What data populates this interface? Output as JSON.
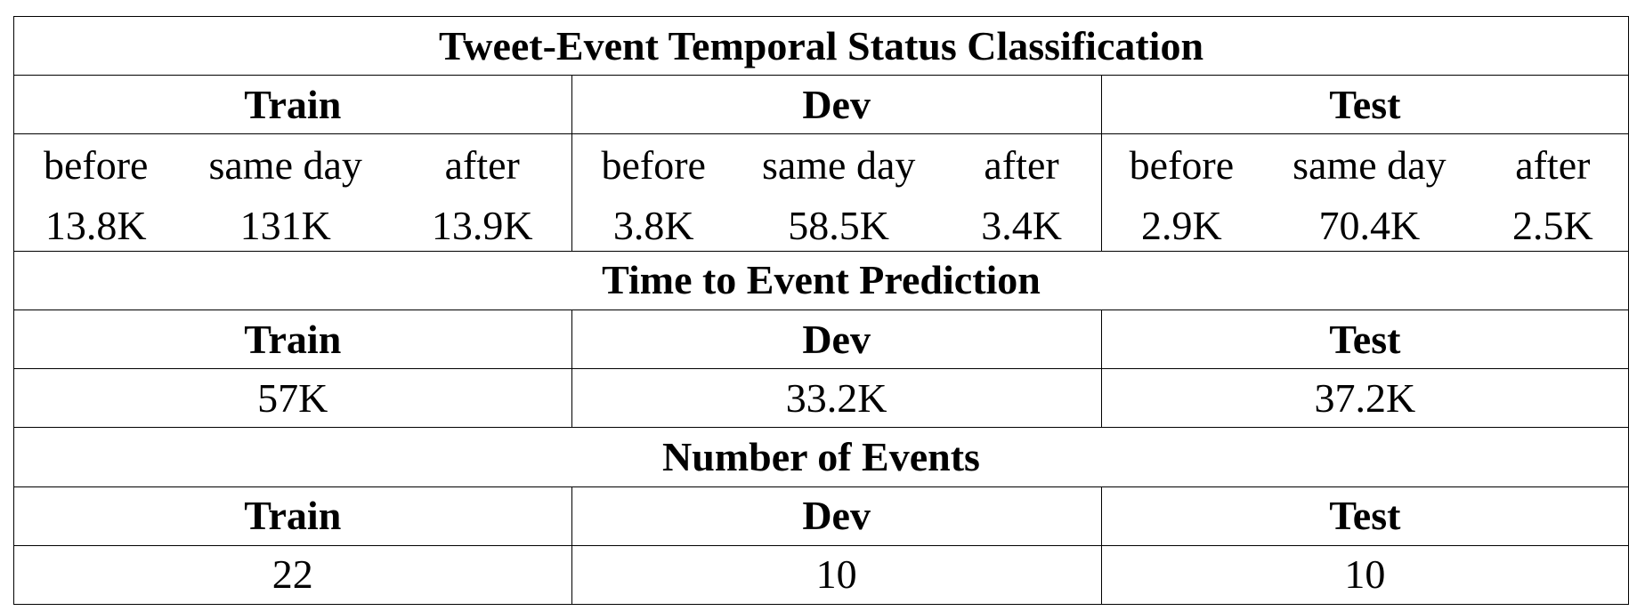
{
  "sections": {
    "classification": {
      "title": "Tweet-Event Temporal Status Classification",
      "splits": [
        {
          "name": "Train",
          "columns": [
            {
              "label": "before",
              "value": "13.8K"
            },
            {
              "label": "same day",
              "value": "131K"
            },
            {
              "label": "after",
              "value": "13.9K"
            }
          ]
        },
        {
          "name": "Dev",
          "columns": [
            {
              "label": "before",
              "value": "3.8K"
            },
            {
              "label": "same day",
              "value": "58.5K"
            },
            {
              "label": "after",
              "value": "3.4K"
            }
          ]
        },
        {
          "name": "Test",
          "columns": [
            {
              "label": "before",
              "value": "2.9K"
            },
            {
              "label": "same day",
              "value": "70.4K"
            },
            {
              "label": "after",
              "value": "2.5K"
            }
          ]
        }
      ]
    },
    "time_to_event": {
      "title": "Time to Event Prediction",
      "splits": [
        {
          "name": "Train",
          "value": "57K"
        },
        {
          "name": "Dev",
          "value": "33.2K"
        },
        {
          "name": "Test",
          "value": "37.2K"
        }
      ]
    },
    "num_events": {
      "title": "Number of Events",
      "splits": [
        {
          "name": "Train",
          "value": "22"
        },
        {
          "name": "Dev",
          "value": "10"
        },
        {
          "name": "Test",
          "value": "10"
        }
      ]
    }
  }
}
